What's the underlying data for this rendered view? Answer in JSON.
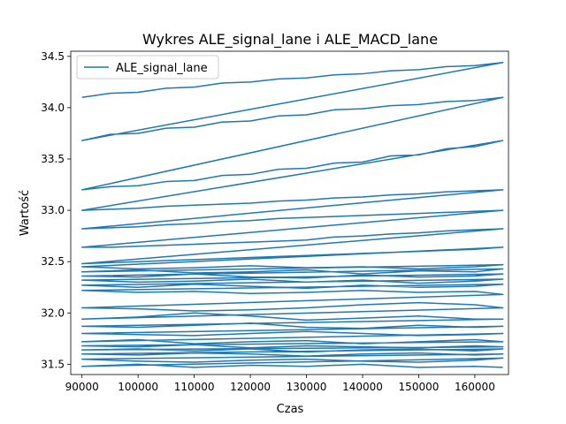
{
  "chart_data": {
    "type": "line",
    "title": "Wykres ALE_signal_lane i ALE_MACD_lane",
    "xlabel": "Czas",
    "ylabel": "Wartość",
    "xlim": [
      88000,
      166000
    ],
    "ylim": [
      31.4,
      34.55
    ],
    "xticks": [
      90000,
      100000,
      110000,
      120000,
      130000,
      140000,
      150000,
      160000
    ],
    "yticks": [
      31.5,
      32.0,
      32.5,
      33.0,
      33.5,
      34.0,
      34.5
    ],
    "xtick_labels": [
      "90000",
      "100000",
      "110000",
      "120000",
      "130000",
      "140000",
      "150000",
      "160000"
    ],
    "ytick_labels": [
      "31.5",
      "32.0",
      "32.5",
      "33.0",
      "33.5",
      "34.0",
      "34.5"
    ],
    "grid": false,
    "legend_position": "top-left",
    "colors": {
      "series": "#1f77b4",
      "axes": "#000000",
      "background": "#ffffff"
    },
    "series": [
      {
        "name": "ALE_signal_lane",
        "x": [
          90000,
          95000,
          100000,
          105000,
          110000,
          115000,
          120000,
          125000,
          130000,
          135000,
          140000,
          145000,
          150000,
          155000,
          160000,
          165000,
          90000,
          95000,
          100000,
          105000,
          110000,
          115000,
          120000,
          125000,
          130000,
          135000,
          140000,
          145000,
          150000,
          155000,
          160000,
          165000,
          90000,
          95000,
          100000,
          105000,
          110000,
          115000,
          120000,
          125000,
          130000,
          135000,
          140000,
          145000,
          150000,
          155000,
          160000,
          165000,
          90000,
          95000,
          100000,
          105000,
          110000,
          115000,
          120000,
          125000,
          130000,
          135000,
          140000,
          145000,
          150000,
          155000,
          160000,
          165000,
          90000,
          95000,
          100000,
          105000,
          110000,
          115000,
          120000,
          125000,
          130000,
          135000,
          140000,
          145000,
          150000,
          155000,
          160000,
          165000,
          90000,
          95000,
          100000,
          105000,
          110000,
          115000,
          120000,
          125000,
          130000,
          135000,
          140000,
          145000,
          150000,
          155000,
          160000,
          165000,
          90000,
          95000,
          100000,
          105000,
          110000,
          115000,
          120000,
          125000,
          130000,
          135000,
          140000,
          145000,
          150000,
          155000,
          160000,
          165000,
          90000,
          100000,
          110000,
          120000,
          130000,
          140000,
          150000,
          160000,
          165000,
          90000,
          100000,
          110000,
          120000,
          130000,
          140000,
          150000,
          160000,
          165000,
          90000,
          100000,
          110000,
          120000,
          130000,
          140000,
          150000,
          160000,
          165000,
          90000,
          100000,
          110000,
          120000,
          130000,
          140000,
          150000,
          160000,
          165000,
          90000,
          100000,
          110000,
          120000,
          130000,
          140000,
          150000,
          160000,
          165000,
          90000,
          100000,
          110000,
          120000,
          130000,
          140000,
          150000,
          160000,
          165000,
          90000,
          100000,
          110000,
          120000,
          130000,
          140000,
          150000,
          160000,
          165000,
          90000,
          100000,
          110000,
          120000,
          130000,
          140000,
          150000,
          160000,
          165000,
          90000,
          100000,
          110000,
          120000,
          130000,
          140000,
          150000,
          160000,
          165000,
          90000,
          100000,
          110000,
          120000,
          130000,
          140000,
          150000,
          160000,
          165000,
          90000,
          100000,
          110000,
          120000,
          130000,
          140000,
          150000,
          160000,
          165000,
          90000,
          100000,
          110000,
          120000,
          130000,
          140000,
          150000,
          160000,
          165000,
          90000,
          100000,
          110000,
          120000,
          130000,
          140000,
          150000,
          160000,
          165000,
          90000,
          100000,
          110000,
          120000,
          130000,
          140000,
          150000,
          160000,
          165000,
          90000,
          100000,
          110000,
          120000,
          130000,
          140000,
          150000,
          160000,
          165000,
          90000,
          100000,
          110000,
          120000,
          130000,
          140000,
          150000,
          160000,
          165000
        ],
        "y": [
          34.1,
          34.14,
          34.15,
          34.19,
          34.2,
          34.24,
          34.25,
          34.28,
          34.29,
          34.32,
          34.33,
          34.36,
          34.37,
          34.4,
          34.41,
          34.44,
          33.68,
          33.74,
          33.75,
          33.8,
          33.81,
          33.86,
          33.87,
          33.92,
          33.93,
          33.98,
          33.99,
          34.02,
          34.03,
          34.06,
          34.07,
          34.1,
          33.2,
          33.23,
          33.24,
          33.28,
          33.29,
          33.34,
          33.35,
          33.4,
          33.41,
          33.46,
          33.47,
          33.53,
          33.54,
          33.6,
          33.62,
          33.68,
          33.0,
          33.01,
          33.02,
          33.04,
          33.05,
          33.06,
          33.07,
          33.09,
          33.1,
          33.12,
          33.13,
          33.15,
          33.16,
          33.18,
          33.19,
          33.2,
          32.82,
          32.83,
          32.84,
          32.86,
          32.87,
          32.89,
          32.9,
          32.92,
          32.93,
          32.94,
          32.95,
          32.96,
          32.97,
          32.98,
          32.99,
          33.0,
          32.64,
          32.64,
          32.65,
          32.66,
          32.67,
          32.68,
          32.69,
          32.7,
          32.71,
          32.74,
          32.75,
          32.77,
          32.78,
          32.8,
          32.81,
          32.82,
          32.48,
          32.49,
          32.5,
          32.51,
          32.52,
          32.53,
          32.54,
          32.55,
          32.56,
          32.57,
          32.58,
          32.59,
          32.6,
          32.61,
          32.62,
          32.64,
          32.45,
          32.43,
          32.44,
          32.46,
          32.44,
          32.45,
          32.43,
          32.45,
          32.47,
          32.4,
          32.42,
          32.39,
          32.4,
          32.42,
          32.38,
          32.41,
          32.4,
          32.43,
          32.36,
          32.35,
          32.38,
          32.35,
          32.34,
          32.37,
          32.35,
          32.36,
          32.38,
          32.32,
          32.3,
          32.31,
          32.33,
          32.3,
          32.32,
          32.29,
          32.31,
          32.33,
          32.27,
          32.25,
          32.28,
          32.26,
          32.24,
          32.27,
          32.25,
          32.26,
          32.28,
          32.22,
          32.2,
          32.21,
          32.19,
          32.2,
          32.22,
          32.2,
          32.21,
          32.18,
          32.05,
          32.04,
          32.02,
          32.03,
          32.05,
          32.08,
          32.1,
          32.08,
          32.05,
          31.94,
          31.96,
          32.0,
          31.97,
          31.93,
          31.95,
          31.97,
          31.94,
          31.94,
          31.87,
          31.86,
          31.88,
          31.9,
          31.86,
          31.85,
          31.88,
          31.86,
          31.87,
          31.8,
          31.79,
          31.78,
          31.8,
          31.82,
          31.8,
          31.78,
          31.79,
          31.8,
          31.72,
          31.74,
          31.7,
          31.72,
          31.73,
          31.7,
          31.72,
          31.74,
          31.72,
          31.68,
          31.67,
          31.69,
          31.66,
          31.68,
          31.67,
          31.66,
          31.68,
          31.67,
          31.64,
          31.65,
          31.63,
          31.65,
          31.62,
          31.64,
          31.65,
          31.63,
          31.65,
          31.6,
          31.59,
          31.61,
          31.6,
          31.58,
          31.6,
          31.61,
          31.59,
          31.6,
          31.55,
          31.53,
          31.52,
          31.54,
          31.55,
          31.53,
          31.52,
          31.54,
          31.56,
          31.48,
          31.5,
          31.47,
          31.49,
          31.48,
          31.5,
          31.47,
          31.48,
          31.47
        ]
      }
    ]
  }
}
